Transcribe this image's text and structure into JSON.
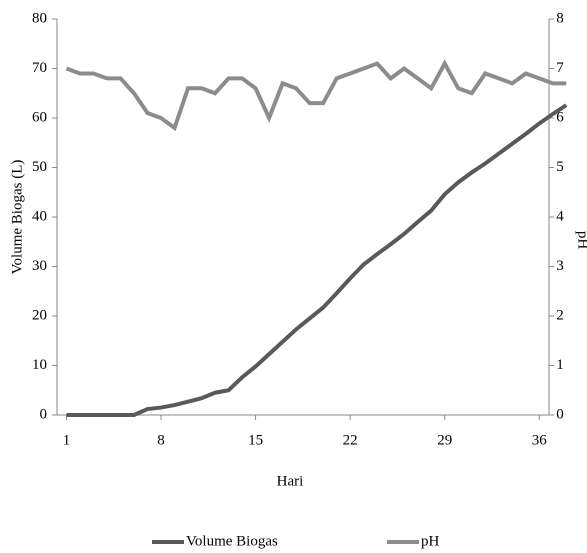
{
  "chart_data": {
    "type": "line",
    "x_label": "Hari",
    "y_label": "Volume Biogas (L)",
    "y2_label": "pH",
    "x": [
      1,
      2,
      3,
      4,
      5,
      6,
      7,
      8,
      9,
      10,
      11,
      12,
      13,
      14,
      15,
      16,
      17,
      18,
      19,
      20,
      21,
      22,
      23,
      24,
      25,
      26,
      27,
      28,
      29,
      30,
      31,
      32,
      33,
      34,
      35,
      36,
      37,
      38
    ],
    "xlim": [
      0.3,
      38.2
    ],
    "xticks": [
      1,
      8,
      15,
      22,
      29,
      36
    ],
    "ylim": [
      0,
      80
    ],
    "yticks": [
      0,
      10,
      20,
      30,
      40,
      50,
      60,
      70,
      80
    ],
    "y2lim": [
      0,
      8
    ],
    "y2ticks": [
      0,
      1,
      2,
      3,
      4,
      5,
      6,
      7,
      8
    ],
    "legend": "bottom",
    "series": [
      {
        "name": "Volume Biogas",
        "color": "#595959",
        "values": [
          0,
          0,
          0,
          0,
          0,
          0,
          1.2,
          1.5,
          2,
          2.7,
          3.4,
          4.5,
          5,
          7.6,
          9.8,
          12.3,
          14.8,
          17.3,
          19.5,
          21.7,
          24.6,
          27.6,
          30.4,
          32.5,
          34.5,
          36.6,
          39,
          41.3,
          44.6,
          47,
          49,
          50.8,
          52.8,
          54.8,
          56.8,
          58.9,
          60.8,
          62.6
        ]
      },
      {
        "name": "pH",
        "color": "#8c8c8c",
        "axis": "y2",
        "values": [
          7,
          6.9,
          6.9,
          6.8,
          6.8,
          6.5,
          6.1,
          6.0,
          5.8,
          6.6,
          6.6,
          6.5,
          6.8,
          6.8,
          6.6,
          6.0,
          6.7,
          6.6,
          6.3,
          6.3,
          6.8,
          6.9,
          7.0,
          7.1,
          6.8,
          7.0,
          6.8,
          6.6,
          7.1,
          6.6,
          6.5,
          6.9,
          6.8,
          6.7,
          6.9,
          6.8,
          6.7,
          6.7
        ]
      }
    ]
  }
}
